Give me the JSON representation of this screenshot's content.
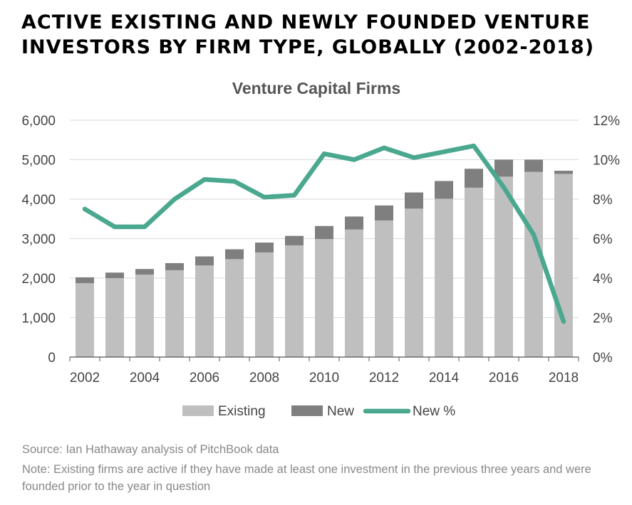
{
  "header": {
    "title_line1": "ACTIVE EXISTING AND NEWLY FOUNDED VENTURE",
    "title_line2": "INVESTORS BY FIRM TYPE, GLOBALLY (2002-2018)"
  },
  "footer": {
    "source": "Source: Ian Hathaway analysis of PitchBook data",
    "note": "Note: Existing firms are active if they have made at least one investment in the previous three years and were founded prior to the year in question"
  },
  "chart_data": {
    "type": "bar",
    "stacked": true,
    "title": "Venture Capital Firms",
    "years": [
      2002,
      2003,
      2004,
      2005,
      2006,
      2007,
      2008,
      2009,
      2010,
      2011,
      2012,
      2013,
      2014,
      2015,
      2016,
      2017,
      2018
    ],
    "x_tick_labels": [
      "2002",
      "2004",
      "2006",
      "2008",
      "2010",
      "2012",
      "2014",
      "2016",
      "2018"
    ],
    "y_left_ticks": [
      "0",
      "1,000",
      "2,000",
      "3,000",
      "4,000",
      "5,000",
      "6,000"
    ],
    "y_right_ticks": [
      "0%",
      "2%",
      "4%",
      "6%",
      "8%",
      "10%",
      "12%"
    ],
    "ylim_left": [
      0,
      6000
    ],
    "ylim_right": [
      0,
      12
    ],
    "grid": true,
    "legend_position": "bottom",
    "series": [
      {
        "name": "Existing",
        "kind": "bar",
        "axis": "left",
        "color": "#bfbfbf",
        "values": [
          1870,
          2000,
          2090,
          2200,
          2320,
          2480,
          2650,
          2830,
          2990,
          3230,
          3460,
          3760,
          4010,
          4290,
          4570,
          4690,
          4640
        ]
      },
      {
        "name": "New",
        "kind": "bar",
        "axis": "left",
        "color": "#7f7f7f",
        "values": [
          150,
          140,
          140,
          180,
          230,
          250,
          250,
          240,
          330,
          330,
          380,
          410,
          450,
          480,
          430,
          310,
          80
        ]
      },
      {
        "name": "New %",
        "kind": "line",
        "axis": "right",
        "color": "#4aa88e",
        "values": [
          7.5,
          6.6,
          6.6,
          8.0,
          9.0,
          8.9,
          8.1,
          8.2,
          10.3,
          10.0,
          10.6,
          10.1,
          10.4,
          10.7,
          8.6,
          6.2,
          1.8
        ]
      }
    ]
  }
}
